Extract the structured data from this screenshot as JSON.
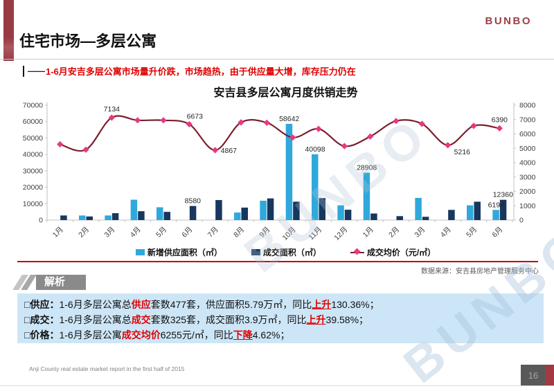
{
  "slide": {
    "logo": "BUNBO",
    "title": "住宅市场—多层公寓",
    "subtitle_prefix": "——",
    "subtitle": "1-6月安吉多层公寓市场量升价跌，市场趋热，由于供应量大增，库存压力仍在",
    "source": "数据来源：安吉县房地产管理服务中心",
    "footer": "Anji County real estate market report in the first half of 2015",
    "page_number": "16",
    "watermark": "BUNBO"
  },
  "analysis": {
    "header": "解析",
    "lines": [
      [
        {
          "t": "□供应：",
          "s": "b"
        },
        {
          "t": "1-6月多层公寓总",
          "s": "n"
        },
        {
          "t": "供应",
          "s": "r"
        },
        {
          "t": "套数477套，供应面积5.79万㎡，同比",
          "s": "n"
        },
        {
          "t": "上升",
          "s": "ru"
        },
        {
          "t": "130.36%；",
          "s": "n"
        }
      ],
      [
        {
          "t": "□成交：",
          "s": "b"
        },
        {
          "t": "1-6月多层公寓总",
          "s": "n"
        },
        {
          "t": "成交",
          "s": "r"
        },
        {
          "t": "套数325套，成交面积3.9万㎡，同比",
          "s": "n"
        },
        {
          "t": "上升",
          "s": "ru"
        },
        {
          "t": "39.58%；",
          "s": "n"
        }
      ],
      [
        {
          "t": "□价格：",
          "s": "b"
        },
        {
          "t": "1-6月多层公寓",
          "s": "n"
        },
        {
          "t": "成交均价",
          "s": "r"
        },
        {
          "t": "6255元/㎡，同比",
          "s": "n"
        },
        {
          "t": "下降",
          "s": "ru"
        },
        {
          "t": "4.62%；",
          "s": "n"
        }
      ]
    ]
  },
  "chart_data": {
    "type": "bar+line combo",
    "title": "安吉县多层公寓月度供销走势",
    "categories": [
      "1月",
      "2月",
      "3月",
      "4月",
      "5月",
      "6月",
      "7月",
      "8月",
      "9月",
      "10月",
      "11月",
      "12月",
      "1月",
      "2月",
      "3月",
      "4月",
      "5月",
      "6月"
    ],
    "series": [
      {
        "name": "新增供应面积（㎡）",
        "type": "bar",
        "axis": "left",
        "color": "#2fa9dc",
        "values": [
          0,
          2800,
          2800,
          12400,
          7800,
          0,
          0,
          4600,
          11800,
          58642,
          40098,
          9000,
          28908,
          0,
          13500,
          0,
          9000,
          6194
        ]
      },
      {
        "name": "成交面积（㎡）",
        "type": "bar",
        "axis": "left",
        "color": "#17375e",
        "values": [
          2800,
          2200,
          4200,
          5400,
          5000,
          8580,
          12200,
          7600,
          13200,
          11200,
          13400,
          6300,
          4000,
          2400,
          2000,
          6200,
          11200,
          12360
        ]
      },
      {
        "name": "成交均价（元/㎡）",
        "type": "line",
        "axis": "right",
        "color": "#7a1f2b",
        "marker_color": "#e9387e",
        "values": [
          5280,
          4900,
          7134,
          6950,
          6950,
          6673,
          4867,
          6800,
          6780,
          5750,
          6350,
          5150,
          5820,
          6900,
          6700,
          5216,
          6560,
          6390
        ]
      }
    ],
    "left_axis": {
      "min": 0,
      "max": 70000,
      "step": 10000
    },
    "right_axis": {
      "min": 0,
      "max": 8000,
      "step": 1000
    },
    "grid": false,
    "legend_position": "bottom",
    "annotations": {
      "supply": {
        "9": "58642",
        "10": "40098",
        "12": "28908",
        "17": "6194"
      },
      "deal": {
        "5": "8580",
        "17": "12360"
      },
      "price": {
        "2": "7134",
        "5": "6673",
        "6": "4867",
        "15": "5216",
        "17": "6390"
      }
    }
  }
}
